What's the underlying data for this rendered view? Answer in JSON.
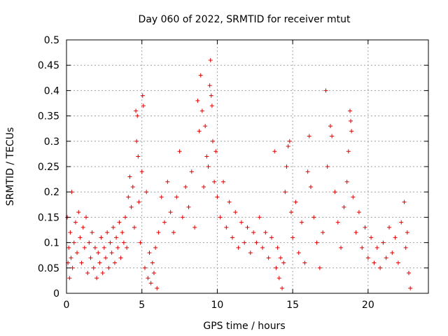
{
  "chart_data": {
    "type": "scatter",
    "title": "Day 060 of 2022, SRMTID for receiver mtut",
    "xlabel": "GPS time / hours",
    "ylabel": "SRMTID / TECUs",
    "xlim": [
      0,
      24
    ],
    "ylim": [
      0,
      0.5
    ],
    "x_ticks": [
      0,
      5,
      10,
      15,
      20
    ],
    "x_tick_labels": [
      "0",
      "5",
      "10",
      "15",
      "20"
    ],
    "y_ticks": [
      0,
      0.05,
      0.1,
      0.15,
      0.2,
      0.25,
      0.3,
      0.35,
      0.4,
      0.45,
      0.5
    ],
    "y_tick_labels": [
      "0",
      "0.05",
      "0.1",
      "0.15",
      "0.2",
      "0.25",
      "0.3",
      "0.35",
      "0.4",
      "0.45",
      "0.5"
    ],
    "grid": true,
    "marker": "+",
    "colors": {
      "points": "#e00000",
      "grid": "#a0a0a0",
      "axis": "#000000"
    },
    "series": [
      {
        "name": "SRMTID",
        "points": [
          [
            0.05,
            0.15
          ],
          [
            0.1,
            0.06
          ],
          [
            0.15,
            0.09
          ],
          [
            0.2,
            0.03
          ],
          [
            0.25,
            0.12
          ],
          [
            0.3,
            0.07
          ],
          [
            0.35,
            0.2
          ],
          [
            0.4,
            0.05
          ],
          [
            0.5,
            0.1
          ],
          [
            0.6,
            0.14
          ],
          [
            0.7,
            0.08
          ],
          [
            0.8,
            0.16
          ],
          [
            0.9,
            0.11
          ],
          [
            1.0,
            0.06
          ],
          [
            1.1,
            0.13
          ],
          [
            1.2,
            0.09
          ],
          [
            1.3,
            0.15
          ],
          [
            1.4,
            0.04
          ],
          [
            1.5,
            0.1
          ],
          [
            1.6,
            0.07
          ],
          [
            1.7,
            0.12
          ],
          [
            1.8,
            0.05
          ],
          [
            1.9,
            0.09
          ],
          [
            2.0,
            0.03
          ],
          [
            2.1,
            0.08
          ],
          [
            2.2,
            0.06
          ],
          [
            2.3,
            0.11
          ],
          [
            2.4,
            0.04
          ],
          [
            2.5,
            0.09
          ],
          [
            2.6,
            0.07
          ],
          [
            2.7,
            0.12
          ],
          [
            2.8,
            0.05
          ],
          [
            2.9,
            0.1
          ],
          [
            3.0,
            0.08
          ],
          [
            3.1,
            0.13
          ],
          [
            3.2,
            0.06
          ],
          [
            3.3,
            0.11
          ],
          [
            3.4,
            0.09
          ],
          [
            3.5,
            0.14
          ],
          [
            3.6,
            0.07
          ],
          [
            3.7,
            0.12
          ],
          [
            3.8,
            0.1
          ],
          [
            3.9,
            0.15
          ],
          [
            4.0,
            0.09
          ],
          [
            4.1,
            0.19
          ],
          [
            4.2,
            0.23
          ],
          [
            4.3,
            0.17
          ],
          [
            4.4,
            0.21
          ],
          [
            4.5,
            0.13
          ],
          [
            4.6,
            0.36
          ],
          [
            4.65,
            0.3
          ],
          [
            4.7,
            0.35
          ],
          [
            4.75,
            0.27
          ],
          [
            4.8,
            0.18
          ],
          [
            4.9,
            0.1
          ],
          [
            5.0,
            0.24
          ],
          [
            5.05,
            0.39
          ],
          [
            5.1,
            0.37
          ],
          [
            5.2,
            0.05
          ],
          [
            5.3,
            0.2
          ],
          [
            5.4,
            0.03
          ],
          [
            5.5,
            0.08
          ],
          [
            5.6,
            0.02
          ],
          [
            5.7,
            0.06
          ],
          [
            5.8,
            0.04
          ],
          [
            5.9,
            0.09
          ],
          [
            6.0,
            0.01
          ],
          [
            6.1,
            0.12
          ],
          [
            6.3,
            0.19
          ],
          [
            6.5,
            0.14
          ],
          [
            6.7,
            0.22
          ],
          [
            6.9,
            0.16
          ],
          [
            7.1,
            0.12
          ],
          [
            7.3,
            0.19
          ],
          [
            7.5,
            0.28
          ],
          [
            7.7,
            0.15
          ],
          [
            7.9,
            0.21
          ],
          [
            8.1,
            0.17
          ],
          [
            8.3,
            0.24
          ],
          [
            8.5,
            0.13
          ],
          [
            8.7,
            0.38
          ],
          [
            8.8,
            0.32
          ],
          [
            8.9,
            0.43
          ],
          [
            9.0,
            0.36
          ],
          [
            9.1,
            0.21
          ],
          [
            9.2,
            0.33
          ],
          [
            9.3,
            0.27
          ],
          [
            9.4,
            0.25
          ],
          [
            9.5,
            0.41
          ],
          [
            9.55,
            0.46
          ],
          [
            9.6,
            0.39
          ],
          [
            9.65,
            0.37
          ],
          [
            9.7,
            0.3
          ],
          [
            9.8,
            0.22
          ],
          [
            9.9,
            0.28
          ],
          [
            10.0,
            0.19
          ],
          [
            10.2,
            0.15
          ],
          [
            10.4,
            0.22
          ],
          [
            10.6,
            0.13
          ],
          [
            10.8,
            0.18
          ],
          [
            11.0,
            0.11
          ],
          [
            11.2,
            0.16
          ],
          [
            11.4,
            0.09
          ],
          [
            11.6,
            0.14
          ],
          [
            11.8,
            0.1
          ],
          [
            12.0,
            0.13
          ],
          [
            12.2,
            0.08
          ],
          [
            12.4,
            0.12
          ],
          [
            12.6,
            0.1
          ],
          [
            12.8,
            0.15
          ],
          [
            13.0,
            0.09
          ],
          [
            13.2,
            0.12
          ],
          [
            13.4,
            0.07
          ],
          [
            13.6,
            0.11
          ],
          [
            13.8,
            0.28
          ],
          [
            13.9,
            0.05
          ],
          [
            14.0,
            0.09
          ],
          [
            14.1,
            0.03
          ],
          [
            14.2,
            0.07
          ],
          [
            14.3,
            0.01
          ],
          [
            14.4,
            0.06
          ],
          [
            14.5,
            0.2
          ],
          [
            14.6,
            0.25
          ],
          [
            14.7,
            0.29
          ],
          [
            14.8,
            0.3
          ],
          [
            14.9,
            0.16
          ],
          [
            15.0,
            0.11
          ],
          [
            15.2,
            0.18
          ],
          [
            15.4,
            0.08
          ],
          [
            15.6,
            0.14
          ],
          [
            15.8,
            0.06
          ],
          [
            16.0,
            0.24
          ],
          [
            16.1,
            0.31
          ],
          [
            16.2,
            0.21
          ],
          [
            16.4,
            0.15
          ],
          [
            16.6,
            0.1
          ],
          [
            16.8,
            0.05
          ],
          [
            17.0,
            0.12
          ],
          [
            17.2,
            0.4
          ],
          [
            17.3,
            0.25
          ],
          [
            17.5,
            0.33
          ],
          [
            17.6,
            0.31
          ],
          [
            17.8,
            0.2
          ],
          [
            18.0,
            0.14
          ],
          [
            18.2,
            0.09
          ],
          [
            18.4,
            0.17
          ],
          [
            18.6,
            0.22
          ],
          [
            18.7,
            0.28
          ],
          [
            18.8,
            0.36
          ],
          [
            18.85,
            0.34
          ],
          [
            18.9,
            0.32
          ],
          [
            19.0,
            0.19
          ],
          [
            19.2,
            0.12
          ],
          [
            19.4,
            0.16
          ],
          [
            19.6,
            0.09
          ],
          [
            19.8,
            0.13
          ],
          [
            20.0,
            0.07
          ],
          [
            20.2,
            0.11
          ],
          [
            20.4,
            0.06
          ],
          [
            20.6,
            0.09
          ],
          [
            20.8,
            0.05
          ],
          [
            21.0,
            0.1
          ],
          [
            21.2,
            0.07
          ],
          [
            21.4,
            0.13
          ],
          [
            21.6,
            0.08
          ],
          [
            21.8,
            0.11
          ],
          [
            22.0,
            0.06
          ],
          [
            22.2,
            0.14
          ],
          [
            22.4,
            0.18
          ],
          [
            22.5,
            0.09
          ],
          [
            22.6,
            0.12
          ],
          [
            22.7,
            0.04
          ],
          [
            22.8,
            0.01
          ]
        ]
      }
    ]
  }
}
